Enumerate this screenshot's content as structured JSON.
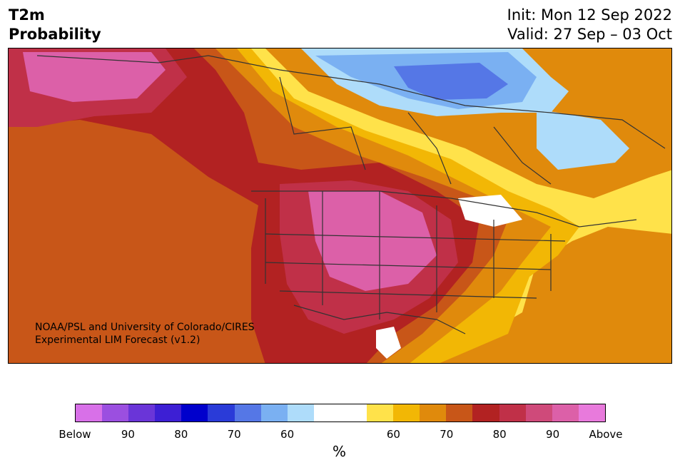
{
  "title": {
    "line1": "T2m",
    "line2": "Probability"
  },
  "info": {
    "init": "Init: Mon 12 Sep 2022",
    "valid": "Valid: 27 Sep – 03 Oct"
  },
  "credit": {
    "line1": "NOAA/PSL and University of Colorado/CIRES",
    "line2": "Experimental LIM Forecast (v1.2)"
  },
  "colorbar": {
    "unit": "%",
    "colors": [
      "#d870e8",
      "#9b4fe0",
      "#6a35d8",
      "#3d1fd4",
      "#0000cc",
      "#2a3bd8",
      "#5577e6",
      "#7ab0f2",
      "#aedcfa",
      "#ffffff",
      "#ffffff",
      "#ffe24a",
      "#f2b705",
      "#e08a0c",
      "#c85618",
      "#b22222",
      "#c03048",
      "#cf4a7a",
      "#dc60a8",
      "#e87adc"
    ],
    "ticks": [
      "Below",
      "90",
      "80",
      "70",
      "60",
      "60",
      "70",
      "80",
      "90",
      "Above"
    ]
  },
  "map_colors": {
    "above_90": "#dc60a8",
    "above_80": "#c03048",
    "above_70": "#b22222",
    "above_65": "#c85618",
    "above_60": "#e08a0c",
    "above_55": "#f2b705",
    "above_50": "#ffe24a",
    "below_55": "#aedcfa",
    "below_60": "#7ab0f2",
    "below_65": "#5577e6",
    "below_70": "#4a6ae0",
    "neutral": "#ffffff",
    "border": "#333333"
  }
}
